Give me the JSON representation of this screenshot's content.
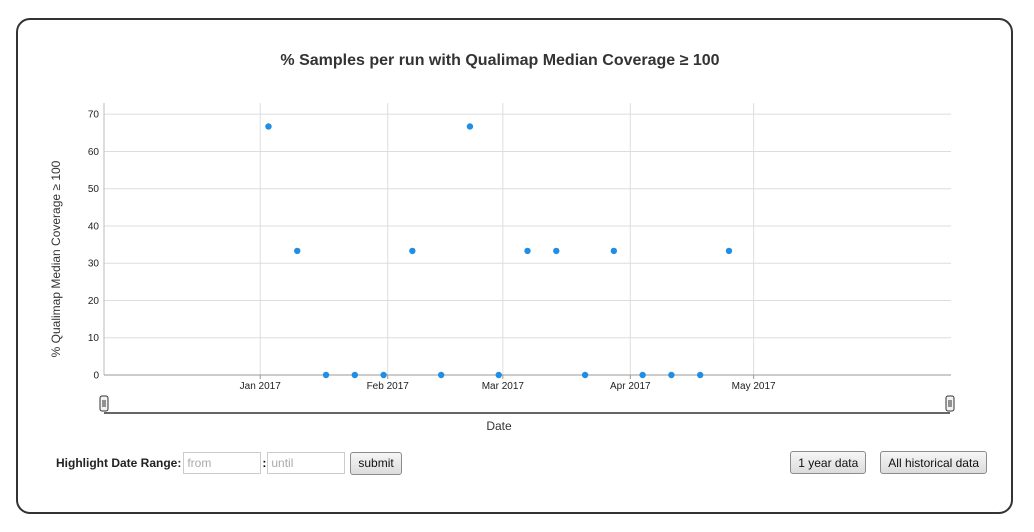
{
  "chart_data": {
    "type": "scatter",
    "title": "% Samples per run with Qualimap Median Coverage ≥ 100",
    "xlabel": "Date",
    "ylabel": "% Qualimap Median Coverage ≥ 100",
    "x_ticks": [
      "Jan 2017",
      "Feb 2017",
      "Mar 2017",
      "Apr 2017",
      "May 2017"
    ],
    "x_tick_dates": [
      "2017-01-01",
      "2017-02-01",
      "2017-03-01",
      "2017-04-01",
      "2017-05-01"
    ],
    "xlim": [
      "2016-11-24",
      "2017-06-18"
    ],
    "y_ticks": [
      0,
      10,
      20,
      30,
      40,
      50,
      60,
      70
    ],
    "ylim": [
      0,
      73
    ],
    "grid": true,
    "point_color": "#1f8ee6",
    "points": [
      {
        "x": "2017-01-03",
        "y": 66.7
      },
      {
        "x": "2017-01-10",
        "y": 33.3
      },
      {
        "x": "2017-01-17",
        "y": 0
      },
      {
        "x": "2017-01-24",
        "y": 0
      },
      {
        "x": "2017-01-31",
        "y": 0
      },
      {
        "x": "2017-02-07",
        "y": 33.3
      },
      {
        "x": "2017-02-14",
        "y": 0
      },
      {
        "x": "2017-02-21",
        "y": 66.7
      },
      {
        "x": "2017-02-28",
        "y": 0
      },
      {
        "x": "2017-03-07",
        "y": 33.3
      },
      {
        "x": "2017-03-14",
        "y": 33.3
      },
      {
        "x": "2017-03-21",
        "y": 0
      },
      {
        "x": "2017-03-28",
        "y": 33.3
      },
      {
        "x": "2017-04-04",
        "y": 0
      },
      {
        "x": "2017-04-11",
        "y": 0
      },
      {
        "x": "2017-04-18",
        "y": 0
      },
      {
        "x": "2017-04-25",
        "y": 33.3
      }
    ]
  },
  "controls": {
    "highlight_label": "Highlight Date Range:",
    "from_placeholder": "from",
    "until_placeholder": "until",
    "separator": ":",
    "submit_label": "submit",
    "one_year_label": "1 year data",
    "all_history_label": "All historical data"
  }
}
